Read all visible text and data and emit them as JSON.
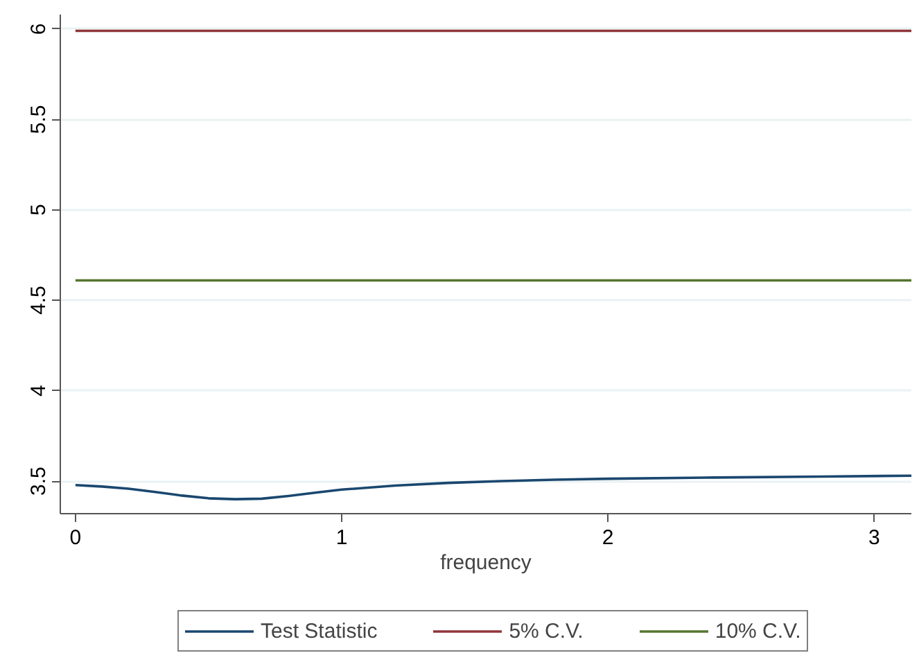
{
  "chart_data": {
    "type": "line",
    "xlabel": "frequency",
    "xlim": [
      -0.057,
      3.14
    ],
    "xticks": [
      0,
      1,
      2,
      3
    ],
    "ylim": [
      3.32,
      6.08
    ],
    "yticks": [
      3.5,
      4,
      4.5,
      5,
      5.5,
      6
    ],
    "grid": "y",
    "legend": "bottom",
    "line_style": "solid",
    "marker": "none",
    "series": [
      {
        "name": "Test Statistic",
        "color": "#1a476f",
        "x": [
          0,
          0.1,
          0.2,
          0.3,
          0.4,
          0.5,
          0.6,
          0.7,
          0.8,
          0.9,
          1.0,
          1.2,
          1.4,
          1.6,
          1.8,
          2.0,
          2.4,
          2.8,
          3.14
        ],
        "values": [
          3.478,
          3.47,
          3.458,
          3.44,
          3.42,
          3.405,
          3.4,
          3.403,
          3.418,
          3.436,
          3.453,
          3.475,
          3.49,
          3.5,
          3.508,
          3.513,
          3.52,
          3.525,
          3.53
        ]
      },
      {
        "name": "5% C.V.",
        "color": "#90353b",
        "x": [
          0,
          3.14
        ],
        "values": [
          5.99,
          5.99
        ]
      },
      {
        "name": "10% C.V.",
        "color": "#55752f",
        "x": [
          0,
          3.14
        ],
        "values": [
          4.61,
          4.61
        ]
      }
    ]
  }
}
